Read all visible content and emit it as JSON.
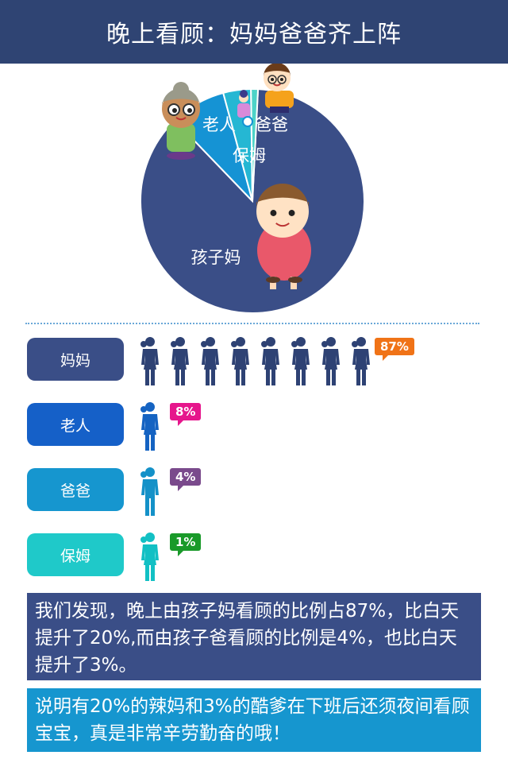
{
  "header": {
    "title": "晚上看顾：妈妈爸爸齐上阵"
  },
  "chart_data": {
    "type": "pie",
    "categories": [
      "孩子妈",
      "老人",
      "爸爸",
      "保姆"
    ],
    "values": [
      87,
      8,
      4,
      1
    ],
    "colors": [
      "#3a4e87",
      "#1593d4",
      "#25b7d3",
      "#4dd3c8"
    ]
  },
  "bars": [
    {
      "label": "妈妈",
      "percent": "87%",
      "value": 87,
      "figures": 8,
      "pill_color": "#3a4e87",
      "figure_color": "#2e4274",
      "bubble_color": "#f07317"
    },
    {
      "label": "老人",
      "percent": "8%",
      "value": 8,
      "figures": 1,
      "pill_color": "#1560c8",
      "figure_color": "#1563c2",
      "bubble_color": "#e6168c"
    },
    {
      "label": "爸爸",
      "percent": "4%",
      "value": 4,
      "figures": 1,
      "pill_color": "#1696cf",
      "figure_color": "#1491c8",
      "bubble_color": "#7a4a8c"
    },
    {
      "label": "保姆",
      "percent": "1%",
      "value": 1,
      "figures": 1,
      "pill_color": "#1fc9c9",
      "figure_color": "#12c0c4",
      "bubble_color": "#1a9a2a"
    }
  ],
  "notes": {
    "finding": "我们发现，晚上由孩子妈看顾的比例占87%，比白天提升了20%,而由孩子爸看顾的比例是4%，也比白天提升了3%。",
    "conclusion": "说明有20%的辣妈和3%的酷爹在下班后还须夜间看顾宝宝，真是非常辛劳勤奋的哦！"
  }
}
